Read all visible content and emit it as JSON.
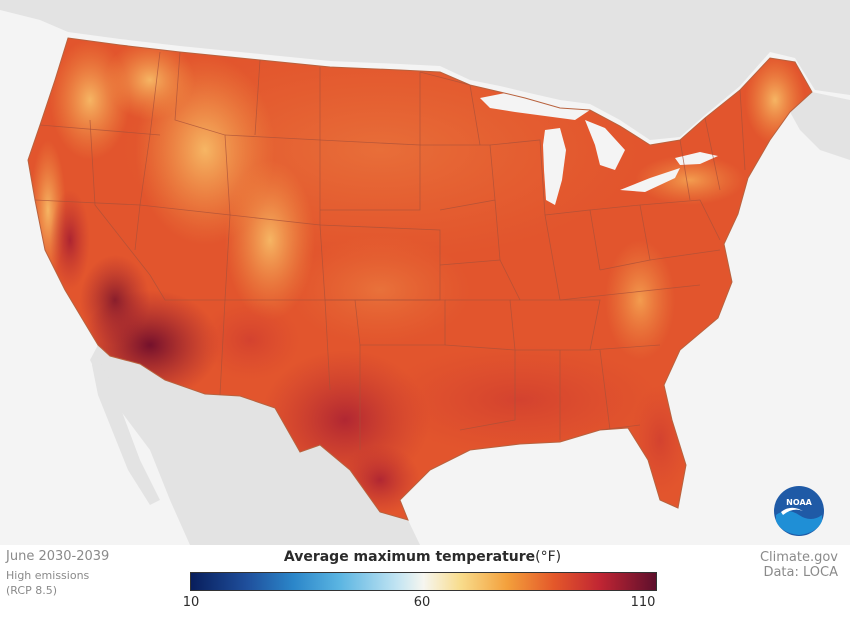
{
  "map": {
    "period": "June 2030-2039",
    "scenario_line1": "High emissions",
    "scenario_line2": "(RCP 8.5)",
    "source": "Climate.gov",
    "data_source": "Data: LOCA",
    "logo_text": "NOAA"
  },
  "legend": {
    "title": "Average maximum temperature",
    "unit": "(°F)",
    "min_label": "10",
    "mid_label": "60",
    "max_label": "110",
    "min": 10,
    "mid": 60,
    "max": 110
  },
  "colors": {
    "land_outside": "#e3e3e3",
    "water": "#f4f4f4",
    "map_base": "#e2552d",
    "hot": "#7a1030",
    "mild": "#f6b45c"
  }
}
